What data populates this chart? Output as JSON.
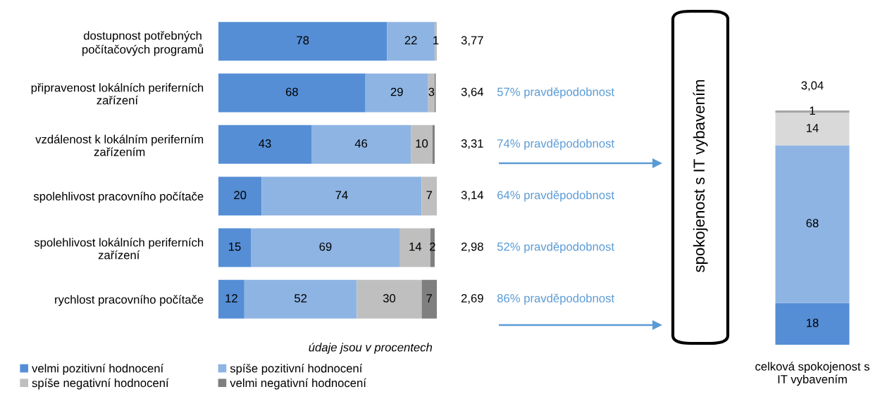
{
  "chart_data": [
    {
      "type": "bar",
      "orientation": "horizontal",
      "stacked": true,
      "tick_labels": false,
      "xlim": [
        0,
        101
      ],
      "legend": "bottom",
      "categories": [
        "dostupnost potřebných\npočítačových programů",
        "připravenost lokálních periferních\nzařízení",
        "vzdálenost k lokálním periferním\nzařízením",
        "spolehlivost pracovního počítače",
        "spolehlivost lokálních periferních\nzařízení",
        "rychlost pracovního počítače"
      ],
      "series": [
        {
          "name": "velmi pozitivní hodnocení",
          "color": "#558ed5",
          "values": [
            78,
            68,
            43,
            20,
            15,
            12
          ],
          "value_labels": [
            "78",
            "68",
            "43",
            "20",
            "15",
            "12"
          ]
        },
        {
          "name": "spíše pozitivní hodnocení",
          "color": "#8eb4e3",
          "values": [
            22,
            29,
            46,
            74,
            69,
            52
          ],
          "value_labels": [
            "22",
            "29",
            "46",
            "74",
            "69",
            "52"
          ]
        },
        {
          "name": "spíše negativní hodnocení",
          "color": "#bfbfbf",
          "values": [
            1,
            3,
            10,
            7,
            14,
            30
          ],
          "value_labels": [
            "1",
            "3",
            "10",
            "7",
            "14",
            "30"
          ]
        },
        {
          "name": "velmi negativní hodnocení",
          "color": "#7f7f7f",
          "values": [
            null,
            0.5,
            1,
            null,
            2,
            7
          ],
          "value_labels": [
            null,
            null,
            null,
            null,
            "2",
            "7"
          ]
        }
      ],
      "annotations": [
        "3,77",
        "3,64",
        "3,31",
        "3,14",
        "2,98",
        "2,69",
        "57% pravděpodobnost",
        "74% pravděpodobnost",
        "64% pravděpodobnost",
        "52% pravděpodobnost",
        "86% pravděpodobnost",
        "údaje jsou v procentech"
      ]
    },
    {
      "type": "bar",
      "stacked": true,
      "tick_labels": false,
      "ylim": [
        0,
        101
      ],
      "categories": [
        null
      ],
      "xlabel": "celková spokojenost s\nIT vybavením",
      "data_labels": true,
      "annotations": [
        "3,04",
        "spokojenost s IT vybavením"
      ],
      "series": [
        {
          "color": "#558ed5",
          "values": [
            18
          ]
        },
        {
          "color": "#8eb4e3",
          "values": [
            68
          ]
        },
        {
          "color": "#d9d9d9",
          "values": [
            14
          ]
        },
        {
          "color": "#a6a6a6",
          "values": [
            1
          ]
        }
      ]
    }
  ]
}
